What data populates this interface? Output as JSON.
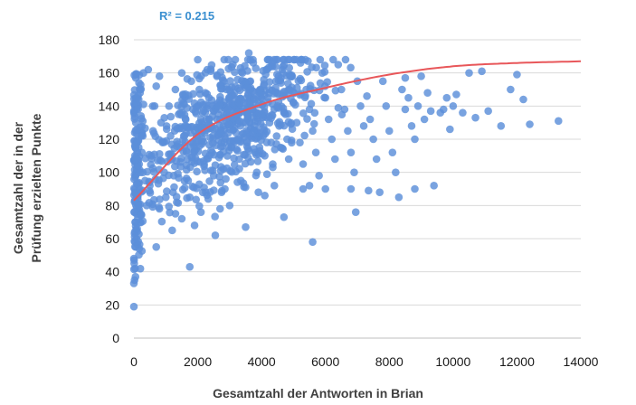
{
  "chart_data": {
    "type": "scatter",
    "title": "",
    "annotation": "R² = 0.215",
    "xlabel": "Gesamtzahl der Antworten in Brian",
    "ylabel_lines": [
      "Gesamtzahl der in der",
      "Prüfung erzielten Punkte"
    ],
    "xlim": [
      0,
      14000
    ],
    "ylim": [
      0,
      180
    ],
    "x_ticks": [
      "0",
      "2000",
      "4000",
      "6000",
      "8000",
      "10000",
      "12000",
      "14000"
    ],
    "y_ticks": [
      "0",
      "20",
      "40",
      "60",
      "80",
      "100",
      "120",
      "140",
      "160",
      "180"
    ],
    "grid": "horizontal",
    "legend": "none",
    "colors": {
      "points": "#5b8fd9",
      "trendline": "#e8575a",
      "annotation": "#3a8fd0"
    },
    "trendline": {
      "kind": "polynomial-fit",
      "x": [
        0,
        2000,
        4000,
        6000,
        8000,
        10000,
        12000,
        14000
      ],
      "y": [
        83,
        123,
        141,
        151,
        159,
        164,
        166,
        167
      ]
    },
    "points": [
      [
        0,
        19
      ],
      [
        0,
        33
      ],
      [
        20,
        35
      ],
      [
        50,
        37
      ],
      [
        10,
        45
      ],
      [
        40,
        42
      ],
      [
        0,
        48
      ],
      [
        60,
        55
      ],
      [
        30,
        58
      ],
      [
        80,
        60
      ],
      [
        20,
        63
      ],
      [
        100,
        66
      ],
      [
        50,
        70
      ],
      [
        120,
        72
      ],
      [
        10,
        76
      ],
      [
        150,
        80
      ],
      [
        30,
        83
      ],
      [
        60,
        87
      ],
      [
        180,
        90
      ],
      [
        90,
        93
      ],
      [
        40,
        97
      ],
      [
        200,
        100
      ],
      [
        120,
        104
      ],
      [
        60,
        108
      ],
      [
        250,
        112
      ],
      [
        150,
        115
      ],
      [
        30,
        119
      ],
      [
        280,
        122
      ],
      [
        100,
        126
      ],
      [
        60,
        130
      ],
      [
        220,
        134
      ],
      [
        130,
        138
      ],
      [
        300,
        141
      ],
      [
        80,
        145
      ],
      [
        200,
        150
      ],
      [
        160,
        154
      ],
      [
        60,
        157
      ],
      [
        300,
        160
      ],
      [
        450,
        162
      ],
      [
        150,
        144
      ],
      [
        100,
        118
      ],
      [
        350,
        95
      ],
      [
        400,
        80
      ],
      [
        500,
        92
      ],
      [
        550,
        110
      ],
      [
        600,
        125
      ],
      [
        650,
        140
      ],
      [
        700,
        152
      ],
      [
        800,
        158
      ],
      [
        850,
        130
      ],
      [
        900,
        118
      ],
      [
        950,
        100
      ],
      [
        1000,
        85
      ],
      [
        1100,
        140
      ],
      [
        1150,
        122
      ],
      [
        1200,
        108
      ],
      [
        1250,
        98
      ],
      [
        1300,
        150
      ],
      [
        1400,
        135
      ],
      [
        1450,
        115
      ],
      [
        1500,
        160
      ],
      [
        1550,
        142
      ],
      [
        1600,
        128
      ],
      [
        1650,
        112
      ],
      [
        1700,
        95
      ],
      [
        1750,
        85
      ],
      [
        1800,
        155
      ],
      [
        1850,
        138
      ],
      [
        1900,
        125
      ],
      [
        1950,
        118
      ],
      [
        2000,
        168
      ],
      [
        2050,
        150
      ],
      [
        2100,
        132
      ],
      [
        2150,
        120
      ],
      [
        2200,
        105
      ],
      [
        2250,
        88
      ],
      [
        2300,
        162
      ],
      [
        2350,
        145
      ],
      [
        2400,
        128
      ],
      [
        2450,
        112
      ],
      [
        2500,
        98
      ],
      [
        2550,
        62
      ],
      [
        1900,
        68
      ],
      [
        2100,
        76
      ],
      [
        1500,
        72
      ],
      [
        1200,
        65
      ],
      [
        800,
        78
      ],
      [
        700,
        55
      ],
      [
        1750,
        43
      ],
      [
        2600,
        158
      ],
      [
        2650,
        140
      ],
      [
        2700,
        132
      ],
      [
        2750,
        118
      ],
      [
        2800,
        102
      ],
      [
        2850,
        90
      ],
      [
        2900,
        150
      ],
      [
        2950,
        138
      ],
      [
        3000,
        126
      ],
      [
        3050,
        115
      ],
      [
        3100,
        165
      ],
      [
        3150,
        148
      ],
      [
        3200,
        135
      ],
      [
        3250,
        120
      ],
      [
        3300,
        108
      ],
      [
        3350,
        95
      ],
      [
        3400,
        160
      ],
      [
        3450,
        142
      ],
      [
        3500,
        130
      ],
      [
        3550,
        118
      ],
      [
        3600,
        172
      ],
      [
        3650,
        155
      ],
      [
        3700,
        138
      ],
      [
        3750,
        125
      ],
      [
        3800,
        112
      ],
      [
        3850,
        100
      ],
      [
        3900,
        88
      ],
      [
        3950,
        150
      ],
      [
        4000,
        135
      ],
      [
        4050,
        122
      ],
      [
        4100,
        110
      ],
      [
        4150,
        162
      ],
      [
        4200,
        145
      ],
      [
        4250,
        130
      ],
      [
        4300,
        118
      ],
      [
        4350,
        105
      ],
      [
        4400,
        92
      ],
      [
        4450,
        155
      ],
      [
        4500,
        140
      ],
      [
        4550,
        128
      ],
      [
        4600,
        115
      ],
      [
        4650,
        162
      ],
      [
        4700,
        148
      ],
      [
        4750,
        135
      ],
      [
        4800,
        120
      ],
      [
        4850,
        108
      ],
      [
        3500,
        67
      ],
      [
        4700,
        73
      ],
      [
        3000,
        80
      ],
      [
        2700,
        78
      ],
      [
        4100,
        86
      ],
      [
        4900,
        158
      ],
      [
        5000,
        142
      ],
      [
        5100,
        130
      ],
      [
        5200,
        118
      ],
      [
        5300,
        105
      ],
      [
        5400,
        150
      ],
      [
        5500,
        138
      ],
      [
        5600,
        125
      ],
      [
        5700,
        112
      ],
      [
        5800,
        98
      ],
      [
        5900,
        160
      ],
      [
        6000,
        145
      ],
      [
        6100,
        132
      ],
      [
        6200,
        120
      ],
      [
        6300,
        108
      ],
      [
        6400,
        165
      ],
      [
        6500,
        150
      ],
      [
        6600,
        138
      ],
      [
        6700,
        125
      ],
      [
        6800,
        112
      ],
      [
        6900,
        100
      ],
      [
        7000,
        155
      ],
      [
        7100,
        140
      ],
      [
        7200,
        128
      ],
      [
        5500,
        92
      ],
      [
        5300,
        90
      ],
      [
        5600,
        58
      ],
      [
        6000,
        90
      ],
      [
        6800,
        90
      ],
      [
        6950,
        76
      ],
      [
        7300,
        146
      ],
      [
        7400,
        132
      ],
      [
        7500,
        120
      ],
      [
        7600,
        108
      ],
      [
        7700,
        88
      ],
      [
        7800,
        155
      ],
      [
        7900,
        140
      ],
      [
        8000,
        125
      ],
      [
        8100,
        112
      ],
      [
        8200,
        100
      ],
      [
        8300,
        85
      ],
      [
        7350,
        89
      ],
      [
        8400,
        150
      ],
      [
        8500,
        138
      ],
      [
        8600,
        145
      ],
      [
        8700,
        128
      ],
      [
        8800,
        120
      ],
      [
        8900,
        140
      ],
      [
        9000,
        158
      ],
      [
        9100,
        132
      ],
      [
        9200,
        148
      ],
      [
        9300,
        137
      ],
      [
        9400,
        92
      ],
      [
        9600,
        136
      ],
      [
        9700,
        138
      ],
      [
        9800,
        145
      ],
      [
        9900,
        126
      ],
      [
        10100,
        147
      ],
      [
        10300,
        136
      ],
      [
        10500,
        160
      ],
      [
        10700,
        133
      ],
      [
        10900,
        161
      ],
      [
        11100,
        137
      ],
      [
        11500,
        128
      ],
      [
        11800,
        150
      ],
      [
        12000,
        159
      ],
      [
        12200,
        144
      ],
      [
        12400,
        129
      ],
      [
        13300,
        131
      ],
      [
        8500,
        157
      ],
      [
        8800,
        90
      ],
      [
        10000,
        140
      ]
    ]
  }
}
